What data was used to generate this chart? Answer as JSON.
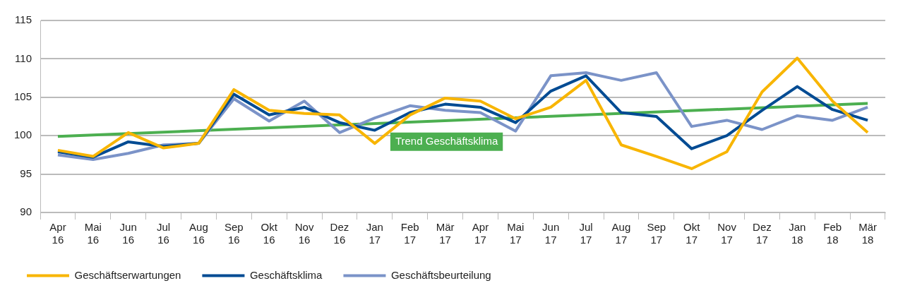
{
  "chart_data": {
    "type": "line",
    "categories": [
      "Apr 16",
      "Mai 16",
      "Jun 16",
      "Jul 16",
      "Aug 16",
      "Sep 16",
      "Okt 16",
      "Nov 16",
      "Dez 16",
      "Jan 17",
      "Feb 17",
      "Mär 17",
      "Apr 17",
      "Mai 17",
      "Jun 17",
      "Jul 17",
      "Aug 17",
      "Sep 17",
      "Okt 17",
      "Nov 17",
      "Dez 17",
      "Jan 18",
      "Feb 18",
      "Mär 18"
    ],
    "series": [
      {
        "name": "Geschäftserwartungen",
        "color": "#f8b500",
        "values": [
          98.1,
          97.3,
          100.4,
          98.4,
          99.0,
          106.0,
          103.3,
          102.9,
          102.7,
          99.0,
          102.7,
          104.9,
          104.5,
          102.2,
          103.7,
          107.2,
          98.8,
          97.3,
          95.7,
          97.9,
          105.7,
          110.1,
          104.5,
          100.4
        ]
      },
      {
        "name": "Geschäftsklima",
        "color": "#004b93",
        "values": [
          97.9,
          97.2,
          99.2,
          98.6,
          99.0,
          105.4,
          102.7,
          103.7,
          101.7,
          100.7,
          103.0,
          104.1,
          103.7,
          101.7,
          105.8,
          107.8,
          103.0,
          102.5,
          98.3,
          100.0,
          103.3,
          106.4,
          103.4,
          102.0
        ]
      },
      {
        "name": "Geschäftsbeurteilung",
        "color": "#7b93c8",
        "values": [
          97.5,
          96.9,
          97.7,
          98.8,
          99.0,
          104.8,
          101.9,
          104.5,
          100.4,
          102.3,
          103.9,
          103.3,
          103.0,
          100.6,
          107.8,
          108.2,
          107.2,
          108.2,
          101.2,
          102.0,
          100.8,
          102.6,
          102.0,
          103.7
        ]
      },
      {
        "name": "Trend Geschäftsklima",
        "type": "line",
        "color": "#4caf50",
        "values": [
          99.9,
          null,
          null,
          null,
          null,
          null,
          null,
          null,
          null,
          null,
          null,
          null,
          null,
          null,
          null,
          null,
          null,
          null,
          null,
          null,
          null,
          null,
          null,
          104.2
        ]
      }
    ],
    "ylim": [
      90,
      115
    ],
    "yticks": [
      90,
      95,
      100,
      105,
      110,
      115
    ],
    "grid": "y",
    "legend": "bottom",
    "marker": "none",
    "line_style": "solid"
  }
}
